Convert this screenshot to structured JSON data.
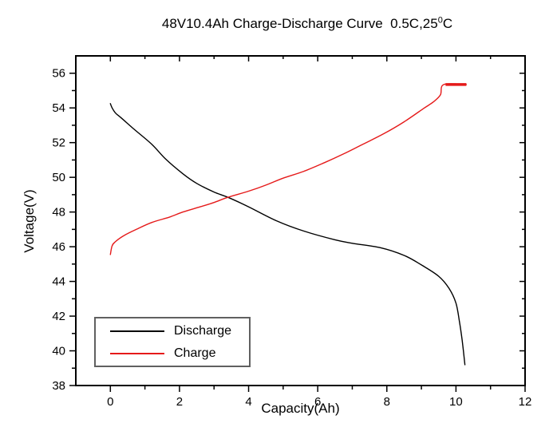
{
  "title": {
    "main": "48V10.4Ah Charge-Discharge Curve  0.5C,25",
    "superscript": "0",
    "suffix": "C"
  },
  "legend": {
    "items": [
      {
        "label": "Discharge",
        "color": "#000000"
      },
      {
        "label": "Charge",
        "color": "#e51a1a"
      }
    ]
  },
  "colors": {
    "axis": "#000000",
    "background": "#ffffff",
    "legend_border": "#606060",
    "discharge": "#000000",
    "charge": "#e51a1a"
  },
  "chart_data": {
    "type": "line",
    "title": "48V10.4Ah Charge-Discharge Curve 0.5C,25°C",
    "xlabel": "Capacity(Ah)",
    "ylabel": "Voltage(V)",
    "xlim": [
      -1,
      12
    ],
    "ylim": [
      38,
      57
    ],
    "x_major_ticks": [
      0,
      2,
      4,
      6,
      8,
      10,
      12
    ],
    "x_minor_ticks": [
      1,
      3,
      5,
      7,
      9,
      11
    ],
    "y_major_ticks": [
      38,
      40,
      42,
      44,
      46,
      48,
      50,
      52,
      54,
      56
    ],
    "y_minor_ticks": [
      39,
      41,
      43,
      45,
      47,
      49,
      51,
      53,
      55
    ],
    "grid": false,
    "legend_position": "lower-left",
    "series": [
      {
        "name": "Discharge",
        "color": "#000000",
        "points": [
          [
            0,
            54.25
          ],
          [
            0.05,
            54.0
          ],
          [
            0.15,
            53.7
          ],
          [
            0.3,
            53.45
          ],
          [
            0.7,
            52.75
          ],
          [
            1.2,
            51.9
          ],
          [
            1.6,
            51.05
          ],
          [
            2.1,
            50.2
          ],
          [
            2.5,
            49.65
          ],
          [
            3.0,
            49.15
          ],
          [
            3.4,
            48.85
          ],
          [
            4.0,
            48.3
          ],
          [
            4.8,
            47.5
          ],
          [
            5.6,
            46.9
          ],
          [
            6.5,
            46.4
          ],
          [
            7.0,
            46.2
          ],
          [
            7.8,
            45.95
          ],
          [
            8.5,
            45.5
          ],
          [
            9.0,
            44.95
          ],
          [
            9.5,
            44.3
          ],
          [
            9.8,
            43.6
          ],
          [
            10.0,
            42.75
          ],
          [
            10.1,
            41.7
          ],
          [
            10.18,
            40.6
          ],
          [
            10.26,
            39.2
          ]
        ]
      },
      {
        "name": "Charge",
        "color": "#e51a1a",
        "points": [
          [
            0,
            45.55
          ],
          [
            0.05,
            46.05
          ],
          [
            0.15,
            46.3
          ],
          [
            0.4,
            46.65
          ],
          [
            0.75,
            47.0
          ],
          [
            1.2,
            47.4
          ],
          [
            1.7,
            47.7
          ],
          [
            2.1,
            48.0
          ],
          [
            2.6,
            48.3
          ],
          [
            3.0,
            48.55
          ],
          [
            3.4,
            48.85
          ],
          [
            4.0,
            49.2
          ],
          [
            4.5,
            49.55
          ],
          [
            5.0,
            49.95
          ],
          [
            5.6,
            50.35
          ],
          [
            6.2,
            50.85
          ],
          [
            6.75,
            51.35
          ],
          [
            7.3,
            51.9
          ],
          [
            7.9,
            52.5
          ],
          [
            8.5,
            53.2
          ],
          [
            9.05,
            53.95
          ],
          [
            9.35,
            54.35
          ],
          [
            9.55,
            54.75
          ],
          [
            9.65,
            55.35
          ],
          [
            10.3,
            55.35
          ]
        ],
        "bold_end_segment": {
          "x_start": 9.7,
          "x_end": 10.3,
          "v": 55.35
        }
      }
    ]
  }
}
